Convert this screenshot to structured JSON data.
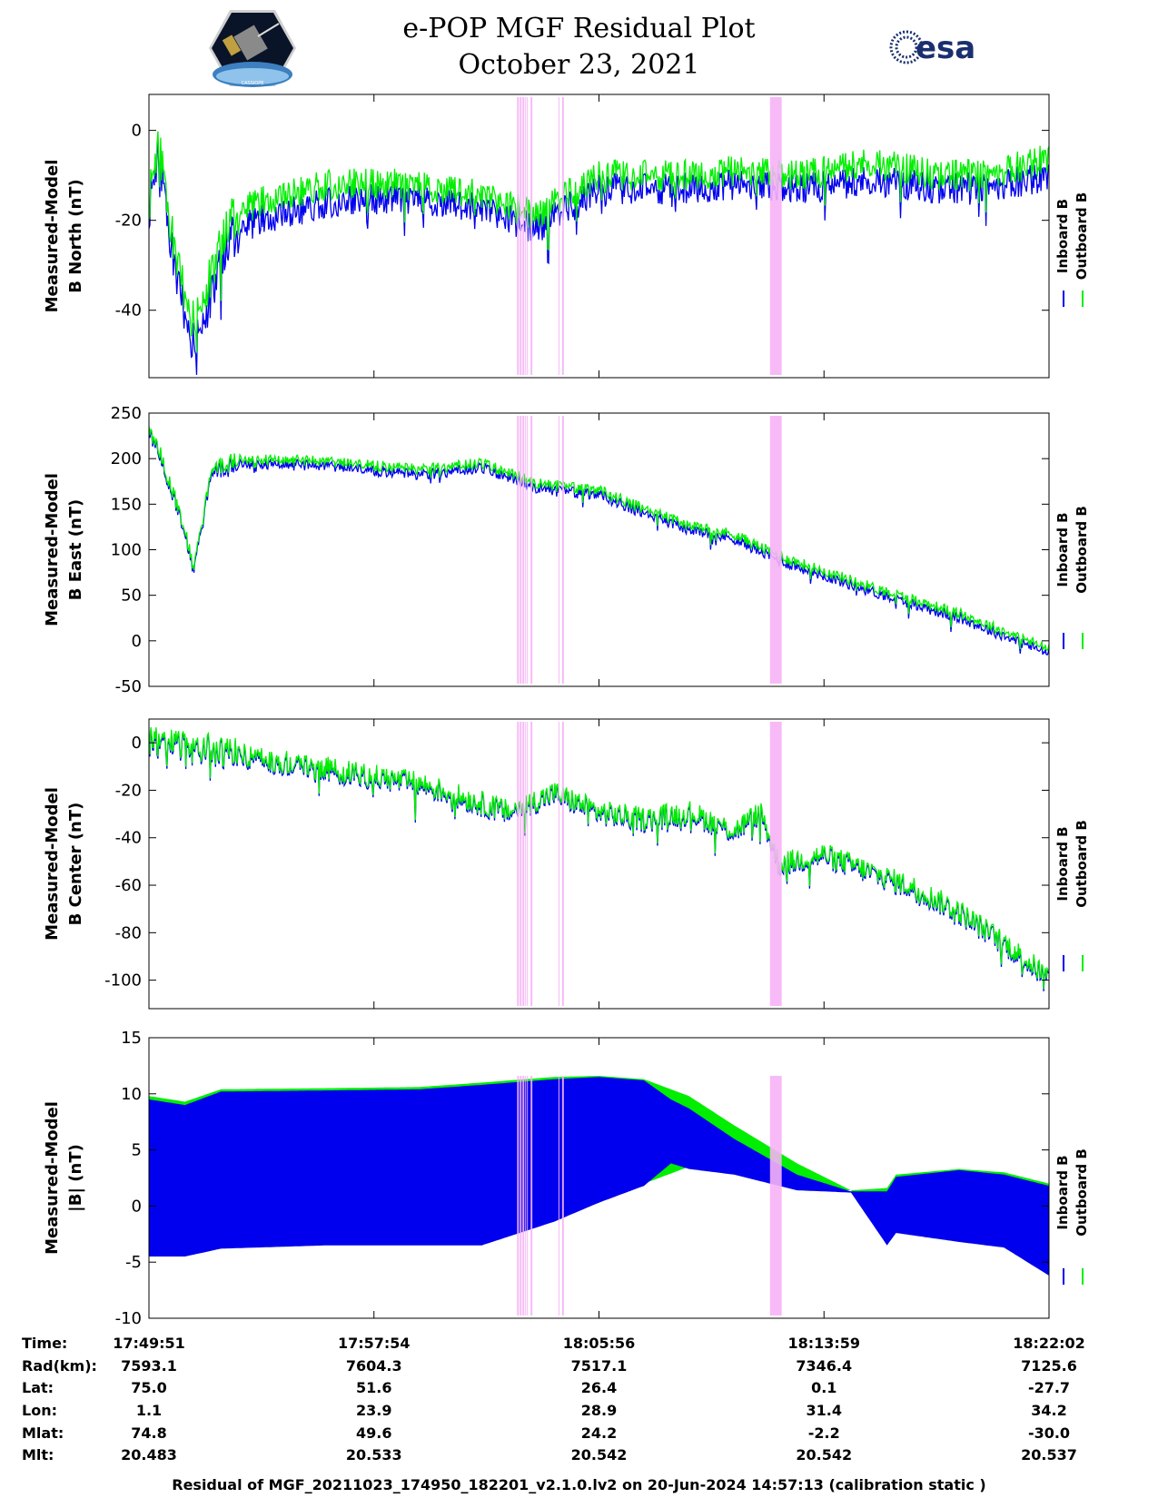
{
  "header": {
    "title_line1": "e-POP MGF Residual Plot",
    "title_line2": "October 23, 2021",
    "left_logo": "cassiope-mission-patch",
    "left_logo_text": "CASSIOPE",
    "right_logo_text": "esa"
  },
  "colors": {
    "inboard": "#0000ee",
    "outboard": "#00ee00",
    "shading": "#f6b3f6"
  },
  "chart_data": [
    {
      "type": "line",
      "ylabel_lines": [
        "Measured-Model",
        "B North (nT)"
      ],
      "ylim": [
        -55.0,
        8.0
      ],
      "yticks": [
        0,
        -20,
        -40
      ],
      "series": [
        {
          "name": "Inboard B",
          "color_key": "inboard",
          "x": [
            0.0,
            0.01,
            0.03,
            0.05,
            0.09,
            0.12,
            0.2,
            0.28,
            0.37,
            0.43,
            0.5,
            0.6,
            0.65,
            0.7,
            0.73,
            0.8,
            0.88,
            0.95,
            1.0
          ],
          "y": [
            -18,
            -4,
            -33,
            -48,
            -24,
            -20,
            -16,
            -15,
            -17,
            -22,
            -13,
            -13,
            -12,
            -12.5,
            -13,
            -11,
            -13,
            -12,
            -10
          ]
        },
        {
          "name": "Outboard B",
          "color_key": "outboard",
          "x": [
            0.0,
            0.01,
            0.03,
            0.05,
            0.09,
            0.12,
            0.2,
            0.28,
            0.37,
            0.43,
            0.5,
            0.6,
            0.65,
            0.7,
            0.73,
            0.8,
            0.88,
            0.95,
            1.0
          ],
          "y": [
            -16,
            -2,
            -29,
            -43,
            -20,
            -16,
            -12,
            -12,
            -14,
            -19,
            -10,
            -10,
            -9,
            -9.5,
            -10,
            -7,
            -10,
            -9,
            -6
          ]
        }
      ]
    },
    {
      "type": "line",
      "ylabel_lines": [
        "Measured-Model",
        "B East (nT)"
      ],
      "ylim": [
        -50,
        250
      ],
      "yticks": [
        250,
        200,
        150,
        100,
        50,
        0,
        -50
      ],
      "series": [
        {
          "name": "Inboard B",
          "color_key": "inboard",
          "x": [
            0.0,
            0.01,
            0.03,
            0.05,
            0.07,
            0.1,
            0.2,
            0.3,
            0.37,
            0.43,
            0.5,
            0.55,
            0.6,
            0.65,
            0.7,
            0.8,
            0.9,
            1.0
          ],
          "y": [
            225,
            210,
            150,
            80,
            185,
            195,
            192,
            182,
            190,
            168,
            160,
            140,
            122,
            112,
            88,
            55,
            25,
            -14
          ]
        },
        {
          "name": "Outboard B",
          "color_key": "outboard",
          "x": [
            0.0,
            0.01,
            0.03,
            0.05,
            0.07,
            0.1,
            0.2,
            0.3,
            0.37,
            0.43,
            0.5,
            0.55,
            0.6,
            0.65,
            0.7,
            0.8,
            0.9,
            1.0
          ],
          "y": [
            228,
            213,
            153,
            83,
            189,
            200,
            197,
            188,
            195,
            173,
            165,
            145,
            127,
            117,
            93,
            60,
            30,
            -9
          ]
        }
      ]
    },
    {
      "type": "line",
      "ylabel_lines": [
        "Measured-Model",
        "B Center (nT)"
      ],
      "ylim": [
        -112,
        10
      ],
      "yticks": [
        0,
        -20,
        -40,
        -60,
        -80,
        -100
      ],
      "series": [
        {
          "name": "Inboard B",
          "color_key": "inboard",
          "x": [
            0.0,
            0.05,
            0.1,
            0.2,
            0.3,
            0.35,
            0.4,
            0.45,
            0.5,
            0.55,
            0.6,
            0.65,
            0.68,
            0.7,
            0.75,
            0.8,
            0.85,
            0.9,
            0.95,
            1.0
          ],
          "y": [
            0,
            -3,
            -6,
            -12,
            -18,
            -24,
            -30,
            -22,
            -30,
            -33,
            -30,
            -38,
            -30,
            -52,
            -48,
            -55,
            -62,
            -72,
            -85,
            -100
          ]
        },
        {
          "name": "Outboard B",
          "color_key": "outboard",
          "x": [
            0.0,
            0.05,
            0.1,
            0.2,
            0.3,
            0.35,
            0.4,
            0.45,
            0.5,
            0.55,
            0.6,
            0.65,
            0.68,
            0.7,
            0.75,
            0.8,
            0.85,
            0.9,
            0.95,
            1.0
          ],
          "y": [
            1,
            -2,
            -5,
            -11,
            -17,
            -23,
            -29,
            -21,
            -29,
            -32,
            -29,
            -37,
            -29,
            -51,
            -47,
            -54,
            -61,
            -71,
            -84,
            -99
          ]
        }
      ]
    },
    {
      "type": "area",
      "ylabel_lines": [
        "Measured-Model",
        "|B| (nT)"
      ],
      "ylim": [
        -10,
        15
      ],
      "yticks": [
        15,
        10,
        5,
        0,
        -5,
        -10
      ],
      "series": [
        {
          "name": "Outboard B",
          "color_key": "outboard",
          "x": [
            0.0,
            0.04,
            0.08,
            0.2,
            0.3,
            0.37,
            0.45,
            0.5,
            0.55,
            0.6,
            0.65,
            0.72,
            0.78,
            0.82,
            0.83,
            0.9,
            0.95,
            1.0
          ],
          "upper": [
            9.8,
            9.3,
            10.4,
            10.5,
            10.6,
            11.0,
            11.5,
            11.6,
            11.3,
            9.8,
            7.2,
            3.8,
            1.4,
            1.6,
            2.8,
            3.3,
            3.0,
            2.0
          ],
          "lower": [
            -4.3,
            -4.3,
            -3.6,
            -3.3,
            -3.3,
            -3.3,
            -1.2,
            0.5,
            2.0,
            3.5,
            3.0,
            1.6,
            1.4,
            -3.3,
            -2.2,
            -3.0,
            -3.5,
            -6.0
          ]
        },
        {
          "name": "Inboard B",
          "color_key": "inboard",
          "x": [
            0.0,
            0.04,
            0.08,
            0.2,
            0.3,
            0.37,
            0.45,
            0.5,
            0.55,
            0.58,
            0.6,
            0.65,
            0.72,
            0.78,
            0.82,
            0.83,
            0.9,
            0.95,
            1.0
          ],
          "upper": [
            9.5,
            9.0,
            10.2,
            10.3,
            10.4,
            10.8,
            11.3,
            11.5,
            11.2,
            9.5,
            8.7,
            6.0,
            2.8,
            1.3,
            1.3,
            2.6,
            3.2,
            2.8,
            1.8
          ],
          "lower": [
            -4.5,
            -4.5,
            -3.8,
            -3.5,
            -3.5,
            -3.5,
            -1.4,
            0.3,
            1.8,
            3.8,
            3.3,
            2.8,
            1.4,
            1.2,
            -3.5,
            -2.4,
            -3.2,
            -3.7,
            -6.2
          ]
        }
      ]
    }
  ],
  "shaded_intervals": [
    [
      0.409,
      0.411
    ],
    [
      0.412,
      0.414
    ],
    [
      0.415,
      0.417
    ],
    [
      0.418,
      0.419
    ],
    [
      0.42,
      0.421
    ],
    [
      0.424,
      0.426
    ],
    [
      0.455,
      0.456
    ],
    [
      0.459,
      0.461
    ],
    [
      0.69,
      0.703
    ]
  ],
  "legend": {
    "inboard": "Inboard B",
    "outboard": "Outboard B"
  },
  "info_table": {
    "labels": [
      "Time:",
      "Rad(km):",
      "Lat:",
      "Lon:",
      "Mlat:",
      "Mlt:"
    ],
    "columns": [
      [
        "17:49:51",
        "7593.1",
        "75.0",
        "1.1",
        "74.8",
        "20.483"
      ],
      [
        "17:57:54",
        "7604.3",
        "51.6",
        "23.9",
        "49.6",
        "20.533"
      ],
      [
        "18:05:56",
        "7517.1",
        "26.4",
        "28.9",
        "24.2",
        "20.542"
      ],
      [
        "18:13:59",
        "7346.4",
        "0.1",
        "31.4",
        "-2.2",
        "20.542"
      ],
      [
        "18:22:02",
        "7125.6",
        "-27.7",
        "34.2",
        "-30.0",
        "20.537"
      ]
    ]
  },
  "footer": "Residual of MGF_20211023_174950_182201_v2.1.0.lv2 on 20-Jun-2024 14:57:13 (calibration static )"
}
